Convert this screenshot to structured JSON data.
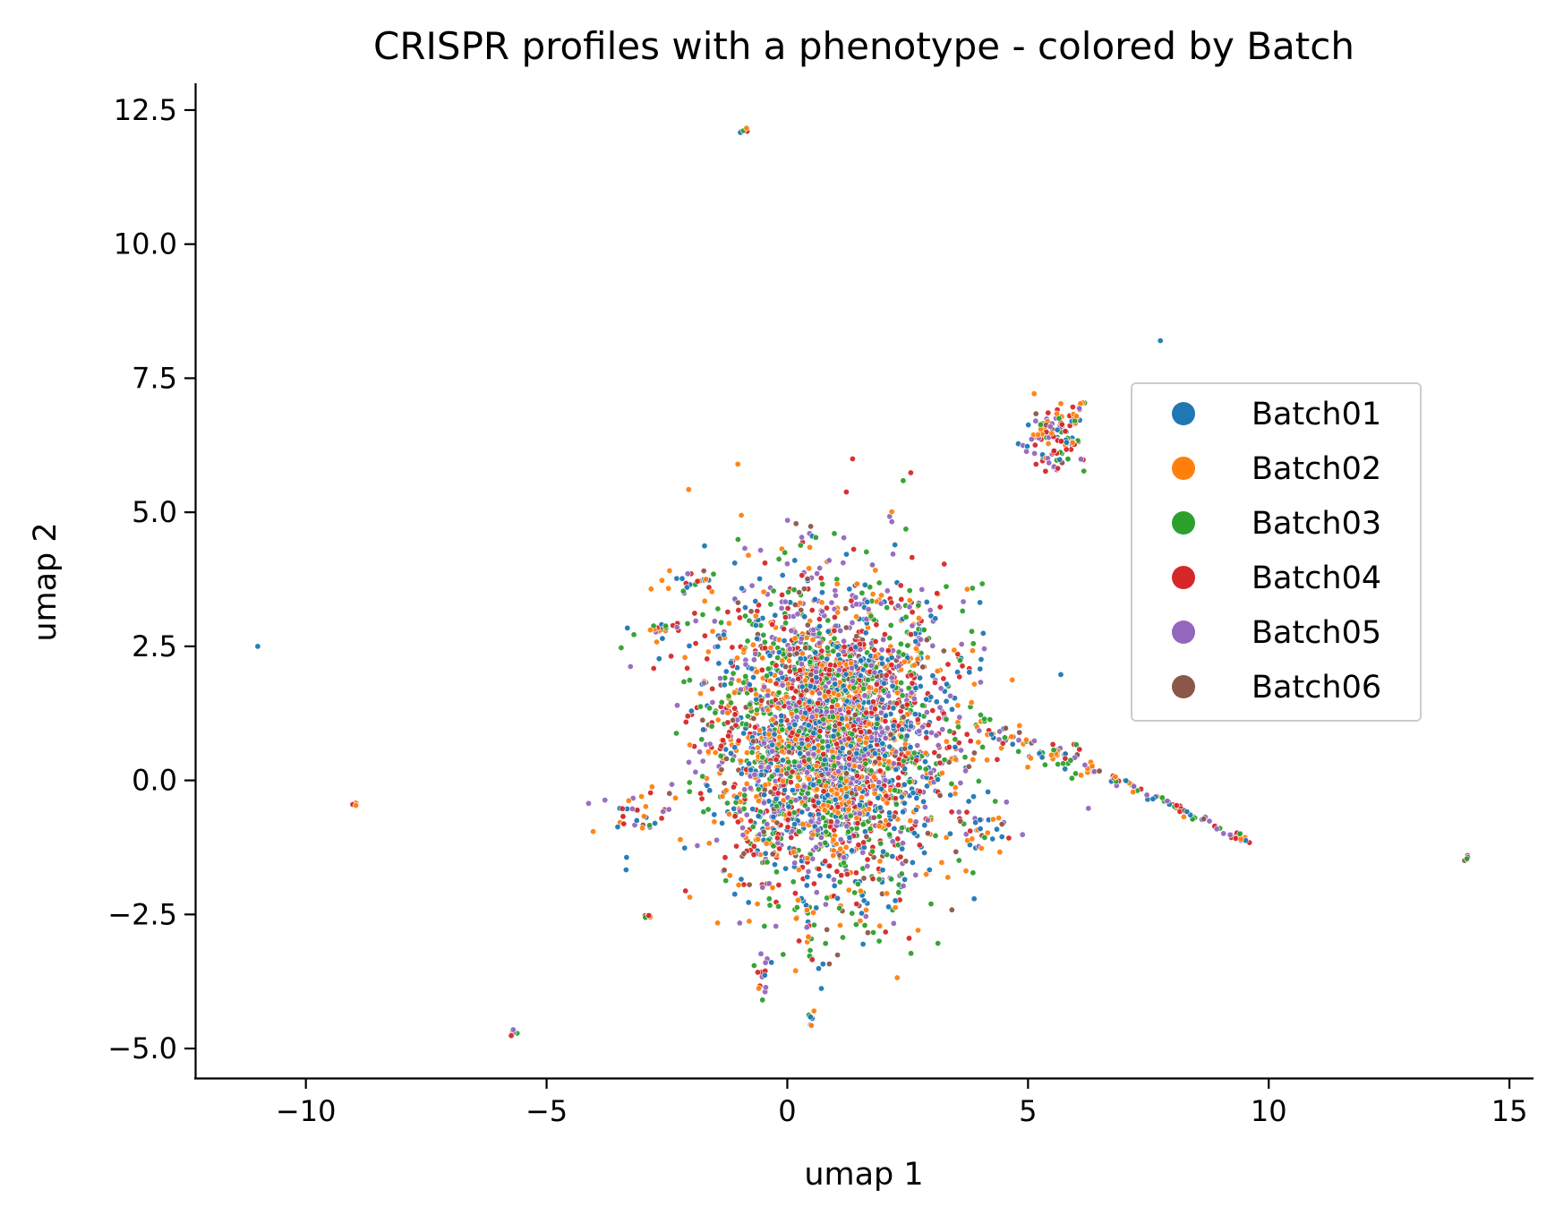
{
  "chart_data": {
    "type": "scatter",
    "title": "CRISPR profiles with a phenotype - colored by Batch",
    "xlabel": "umap 1",
    "ylabel": "umap 2",
    "xlim": [
      -12.3,
      15.5
    ],
    "ylim": [
      -5.55,
      13.0
    ],
    "xticks": [
      -10,
      -5,
      0,
      5,
      10,
      15
    ],
    "xtick_labels": [
      "−10",
      "−5",
      "0",
      "5",
      "10",
      "15"
    ],
    "yticks": [
      -5.0,
      -2.5,
      0.0,
      2.5,
      5.0,
      7.5,
      10.0,
      12.5
    ],
    "ytick_labels": [
      "−5.0",
      "−2.5",
      "0.0",
      "2.5",
      "5.0",
      "7.5",
      "10.0",
      "12.5"
    ],
    "grid": false,
    "legend_position": "center-right",
    "series": [
      {
        "name": "Batch01",
        "color": "#1f77b4"
      },
      {
        "name": "Batch02",
        "color": "#ff7f0e"
      },
      {
        "name": "Batch03",
        "color": "#2ca02c"
      },
      {
        "name": "Batch04",
        "color": "#d62728"
      },
      {
        "name": "Batch05",
        "color": "#9467bd"
      },
      {
        "name": "Batch06",
        "color": "#8c564b"
      }
    ],
    "clusters": [
      {
        "cx": 0.9,
        "cy": 0.8,
        "sx": 1.25,
        "sy": 1.45,
        "n": 3200
      },
      {
        "cx": 5.5,
        "cy": 6.3,
        "sx": 0.3,
        "sy": 0.3,
        "n": 110
      },
      {
        "cx": -0.9,
        "cy": 12.1,
        "sx": 0.04,
        "sy": 0.03,
        "n": 5
      },
      {
        "cx": -9.0,
        "cy": -0.45,
        "sx": 0.03,
        "sy": 0.02,
        "n": 4
      },
      {
        "cx": -5.7,
        "cy": -4.7,
        "sx": 0.05,
        "sy": 0.03,
        "n": 5
      },
      {
        "cx": 14.1,
        "cy": -1.42,
        "sx": 0.04,
        "sy": 0.04,
        "n": 6
      },
      {
        "cx": 4.1,
        "cy": -0.95,
        "sx": 0.3,
        "sy": 0.15,
        "n": 28
      },
      {
        "cx": 0.5,
        "cy": -4.45,
        "sx": 0.04,
        "sy": 0.1,
        "n": 6
      },
      {
        "cx": -0.5,
        "cy": -3.55,
        "sx": 0.1,
        "sy": 0.2,
        "n": 12
      },
      {
        "cx": -2.9,
        "cy": -2.55,
        "sx": 0.06,
        "sy": 0.05,
        "n": 6
      },
      {
        "cx": -2.0,
        "cy": 3.75,
        "sx": 0.25,
        "sy": 0.12,
        "n": 22
      },
      {
        "cx": -2.6,
        "cy": 2.75,
        "sx": 0.3,
        "sy": 0.12,
        "n": 22
      },
      {
        "cx": -3.2,
        "cy": -0.6,
        "sx": 0.35,
        "sy": 0.2,
        "n": 30
      }
    ],
    "arms": [
      {
        "x0": 3.9,
        "y0": 1.0,
        "x1": 6.2,
        "y1": 0.3,
        "n": 70,
        "w": 0.13
      },
      {
        "x0": 6.2,
        "y0": 0.3,
        "x1": 9.6,
        "y1": -1.15,
        "n": 80,
        "w": 0.06
      },
      {
        "x0": 5.9,
        "y0": 6.6,
        "x1": 6.15,
        "y1": 7.1,
        "n": 12,
        "w": 0.05
      },
      {
        "x0": 0.4,
        "y0": -2.3,
        "x1": 0.5,
        "y1": -3.55,
        "n": 14,
        "w": 0.04
      }
    ],
    "outliers": [
      {
        "x": -11.0,
        "y": 2.5,
        "series": 0
      },
      {
        "x": 7.75,
        "y": 8.2,
        "series": 0
      },
      {
        "x": 4.15,
        "y": 0.38,
        "series": 1
      }
    ]
  }
}
